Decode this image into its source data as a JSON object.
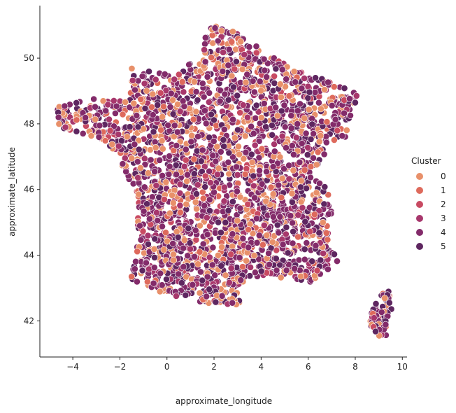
{
  "chart_data": {
    "type": "scatter",
    "title": "",
    "xlabel": "approximate_longitude",
    "ylabel": "approximate_latitude",
    "xlim": [
      -5.4,
      10.2
    ],
    "ylim": [
      40.9,
      51.6
    ],
    "x_ticks": [
      -4,
      -2,
      0,
      2,
      4,
      6,
      8,
      10
    ],
    "y_ticks": [
      42,
      44,
      46,
      48,
      50
    ],
    "grid": false,
    "marker_edge_color": "#ffffff",
    "legend": {
      "title": "Cluster",
      "placement": "right",
      "entries": [
        {
          "label": "0",
          "color": "#e8906a"
        },
        {
          "label": "1",
          "color": "#de6a5c"
        },
        {
          "label": "2",
          "color": "#c84a62"
        },
        {
          "label": "3",
          "color": "#a7376c"
        },
        {
          "label": "4",
          "color": "#832b6a"
        },
        {
          "label": "5",
          "color": "#5e2660"
        }
      ]
    },
    "region_outline_lonlat": [
      [
        2.0,
        51.0
      ],
      [
        3.0,
        50.8
      ],
      [
        4.2,
        50.2
      ],
      [
        5.5,
        49.6
      ],
      [
        6.3,
        49.5
      ],
      [
        7.5,
        49.1
      ],
      [
        8.1,
        48.9
      ],
      [
        7.6,
        47.6
      ],
      [
        6.9,
        47.3
      ],
      [
        6.1,
        46.4
      ],
      [
        6.9,
        46.0
      ],
      [
        7.0,
        45.2
      ],
      [
        6.9,
        44.4
      ],
      [
        7.4,
        43.8
      ],
      [
        6.4,
        43.1
      ],
      [
        5.0,
        43.3
      ],
      [
        4.0,
        43.4
      ],
      [
        3.0,
        42.9
      ],
      [
        3.1,
        42.5
      ],
      [
        1.8,
        42.5
      ],
      [
        0.0,
        42.8
      ],
      [
        -1.7,
        43.3
      ],
      [
        -1.3,
        44.2
      ],
      [
        -1.2,
        45.7
      ],
      [
        -2.1,
        47.0
      ],
      [
        -2.7,
        47.5
      ],
      [
        -4.6,
        47.9
      ],
      [
        -4.7,
        48.5
      ],
      [
        -3.0,
        48.8
      ],
      [
        -1.6,
        48.7
      ],
      [
        -1.5,
        49.7
      ],
      [
        0.2,
        49.5
      ],
      [
        1.5,
        50.1
      ],
      [
        1.7,
        50.9
      ],
      [
        2.0,
        51.0
      ]
    ],
    "island_outline_lonlat": [
      [
        9.4,
        43.0
      ],
      [
        9.6,
        42.3
      ],
      [
        9.3,
        41.5
      ],
      [
        9.0,
        41.4
      ],
      [
        8.6,
        41.9
      ],
      [
        8.7,
        42.5
      ],
      [
        9.4,
        43.0
      ]
    ]
  }
}
